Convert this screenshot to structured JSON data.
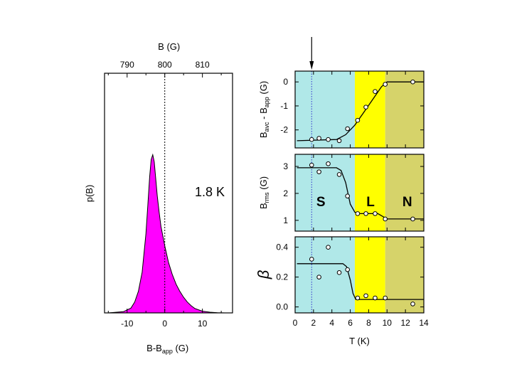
{
  "colors": {
    "magenta": "#ff00ff",
    "cyan": "#b0e8e8",
    "yellow": "#ffff00",
    "olive": "#d6d36a",
    "blue_dotted": "#3333cc"
  },
  "chart_data": [
    {
      "type": "area",
      "title": "",
      "annotation": "1.8 K",
      "xlabel_main": "B-B",
      "xlabel_sub": "app",
      "xlabel_unit": " (G)",
      "ylabel": "p(B)",
      "top_axis_label": "B (G)",
      "xlim": [
        -16,
        18
      ],
      "ylim": [
        0,
        1.0
      ],
      "xticks": [
        -10,
        0,
        10
      ],
      "xtick_labels": [
        "-10",
        "0",
        "10"
      ],
      "top_ticks": [
        790,
        800,
        810
      ],
      "top_tick_labels": [
        "790",
        "800",
        "810"
      ],
      "top_offset": 800,
      "reference_line_x": 0,
      "x": [
        -15,
        -11,
        -9,
        -8,
        -7,
        -6,
        -5,
        -4.5,
        -4,
        -3.6,
        -3.2,
        -2.8,
        -2.4,
        -2,
        -1.5,
        -1,
        0,
        1,
        2,
        3,
        4,
        5,
        6,
        7,
        8,
        10,
        12,
        14,
        16
      ],
      "y": [
        0.0,
        0.005,
        0.02,
        0.045,
        0.09,
        0.17,
        0.33,
        0.45,
        0.57,
        0.64,
        0.66,
        0.63,
        0.56,
        0.49,
        0.42,
        0.36,
        0.28,
        0.21,
        0.16,
        0.12,
        0.09,
        0.065,
        0.045,
        0.03,
        0.018,
        0.007,
        0.003,
        0.001,
        0.0
      ]
    },
    {
      "type": "scatter",
      "panel": "top",
      "ylabel_main": "B",
      "ylabel_sub1": "avc",
      "ylabel_mid": " - B",
      "ylabel_sub2": "app",
      "ylabel_unit": " (G)",
      "xlim": [
        0,
        14
      ],
      "ylim": [
        -2.75,
        0.45
      ],
      "yticks": [
        0,
        -1,
        -2
      ],
      "ytick_labels": [
        "0",
        "-1",
        "-2"
      ],
      "points_x": [
        1.8,
        2.6,
        3.6,
        4.8,
        5.7,
        6.8,
        7.7,
        8.7,
        9.8,
        12.8
      ],
      "points_y": [
        -2.4,
        -2.35,
        -2.4,
        -2.45,
        -1.95,
        -1.6,
        -1.05,
        -0.4,
        -0.1,
        0.0
      ],
      "fit_x": [
        0.2,
        4.5,
        5.5,
        6.5,
        7.5,
        8.5,
        9.4,
        10,
        14
      ],
      "fit_y": [
        -2.45,
        -2.4,
        -2.2,
        -1.8,
        -1.25,
        -0.7,
        -0.2,
        0.0,
        0.0
      ]
    },
    {
      "type": "scatter",
      "panel": "middle",
      "ylabel_main": "B",
      "ylabel_sub": "rms",
      "ylabel_unit": " (G)",
      "xlim": [
        0,
        14
      ],
      "ylim": [
        0.6,
        3.45
      ],
      "yticks": [
        3,
        2,
        1
      ],
      "ytick_labels": [
        "3",
        "2",
        "1"
      ],
      "region_labels": [
        "S",
        "L",
        "N"
      ],
      "points_x": [
        1.8,
        2.6,
        3.6,
        4.8,
        5.7,
        6.8,
        7.7,
        8.7,
        9.8,
        12.8
      ],
      "points_y": [
        3.05,
        2.8,
        3.1,
        2.7,
        1.9,
        1.25,
        1.25,
        1.25,
        1.05,
        1.05
      ],
      "fit_x": [
        0.2,
        4.5,
        5.0,
        5.5,
        6.0,
        6.5,
        7.0,
        9.0,
        10.0,
        14
      ],
      "fit_y": [
        2.95,
        2.95,
        2.85,
        2.4,
        1.6,
        1.3,
        1.25,
        1.25,
        1.05,
        1.05
      ]
    },
    {
      "type": "scatter",
      "panel": "bottom",
      "ylabel": "β",
      "xlabel": "T (K)",
      "xlim": [
        0,
        14
      ],
      "ylim": [
        -0.04,
        0.47
      ],
      "yticks": [
        0.4,
        0.2,
        0.0
      ],
      "ytick_labels": [
        "0.4",
        "0.2",
        "0.0"
      ],
      "xticks": [
        0,
        2,
        4,
        6,
        8,
        10,
        12,
        14
      ],
      "xtick_labels": [
        "0",
        "2",
        "4",
        "6",
        "8",
        "10",
        "12",
        "14"
      ],
      "points_x": [
        1.8,
        2.6,
        3.6,
        4.8,
        5.7,
        6.8,
        7.7,
        8.7,
        9.8,
        12.8
      ],
      "points_y": [
        0.32,
        0.2,
        0.4,
        0.23,
        0.25,
        0.06,
        0.075,
        0.06,
        0.06,
        0.02
      ],
      "fit_x": [
        0.2,
        5.2,
        5.6,
        6.0,
        6.3,
        6.6,
        7.0,
        14
      ],
      "fit_y": [
        0.29,
        0.29,
        0.27,
        0.18,
        0.09,
        0.05,
        0.05,
        0.05
      ]
    }
  ],
  "regions": {
    "superconducting_end_T": 6.5,
    "liquid_end_T": 9.8,
    "marker_T": 1.8
  }
}
